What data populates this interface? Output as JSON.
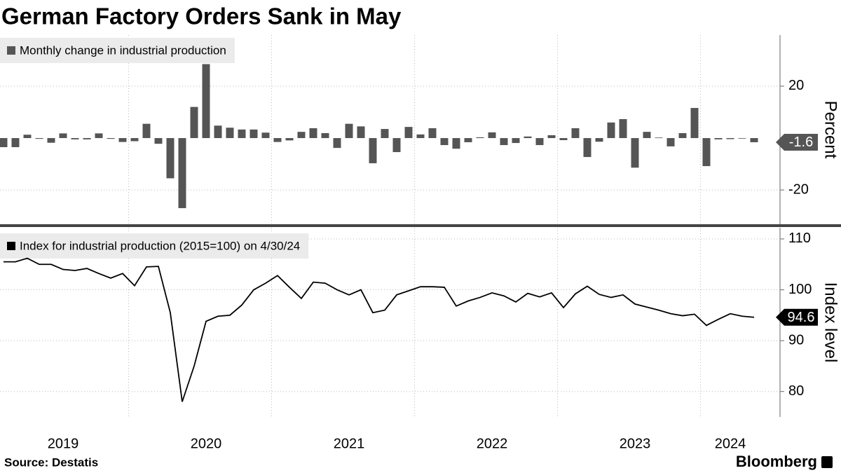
{
  "source": "Source: Destatis",
  "brand": "Bloomberg",
  "chart_data": [
    {
      "type": "bar",
      "title": "German Factory Orders Sank in May",
      "y_label": "Percent",
      "series": [
        {
          "name": "Monthly change in industrial production",
          "color": "#555555",
          "values": [
            -3.5,
            -3.5,
            1.3,
            -0.3,
            -1.8,
            1.8,
            -0.5,
            -0.5,
            1.8,
            -0.3,
            -1.5,
            -1.2,
            5.5,
            -2.2,
            -15.5,
            -27,
            12,
            28.5,
            4.8,
            4,
            3.3,
            3.3,
            2.1,
            -1.5,
            -0.9,
            2.4,
            3.8,
            1.9,
            -3.8,
            5.5,
            4.5,
            -9.7,
            3.5,
            -5.4,
            4.3,
            1.4,
            3.8,
            -2.7,
            -4.1,
            -1.6,
            0.3,
            2.2,
            -2.7,
            -1.9,
            0.6,
            -2.7,
            1.1,
            -0.8,
            3.8,
            -7.3,
            -1.4,
            6,
            7.3,
            -11.4,
            2.4,
            0.2,
            -3.2,
            1.9,
            11.6,
            -10.8,
            -0.5,
            -0.4,
            -0.2,
            -1.6
          ]
        }
      ],
      "ylim": [
        -33.2,
        39.7
      ],
      "yticks": [
        -20,
        20
      ],
      "grid": true
    },
    {
      "type": "line",
      "y_label": "Index level",
      "categories": [
        null,
        null,
        null,
        null,
        null,
        "2019",
        null,
        null,
        null,
        null,
        null,
        null,
        null,
        null,
        null,
        null,
        null,
        "2020",
        null,
        null,
        null,
        null,
        null,
        null,
        null,
        null,
        null,
        null,
        null,
        "2021",
        null,
        null,
        null,
        null,
        null,
        null,
        null,
        null,
        null,
        null,
        null,
        "2022",
        null,
        null,
        null,
        null,
        null,
        null,
        null,
        null,
        null,
        null,
        null,
        "2023",
        null,
        null,
        null,
        null,
        null,
        null,
        null,
        "2024",
        null,
        null
      ],
      "series": [
        {
          "name": "Index for industrial production (2015=100) on 4/30/24",
          "color": "#000000",
          "values": [
            105.5,
            105.5,
            106.2,
            105,
            105,
            104,
            103.8,
            104.2,
            103.2,
            102.3,
            103.2,
            100.8,
            104.5,
            104.6,
            95.5,
            78,
            85,
            93.8,
            94.8,
            95,
            97,
            100,
            101.3,
            102.8,
            100.5,
            98.3,
            101.5,
            101.3,
            100,
            99,
            100,
            95.5,
            96,
            99,
            99.8,
            100.6,
            100.6,
            100.5,
            96.8,
            97.8,
            98.5,
            99.4,
            98.8,
            97.6,
            99.3,
            98.6,
            99.4,
            96.5,
            99.2,
            100.7,
            99.1,
            98.5,
            99,
            97.2,
            96.6,
            96,
            95.3,
            94.9,
            95.2,
            93,
            94.2,
            95.3,
            94.8,
            94.6
          ]
        }
      ],
      "ylim": [
        75,
        112.2
      ],
      "yticks": [
        80,
        90,
        100,
        110
      ],
      "grid": true
    }
  ]
}
